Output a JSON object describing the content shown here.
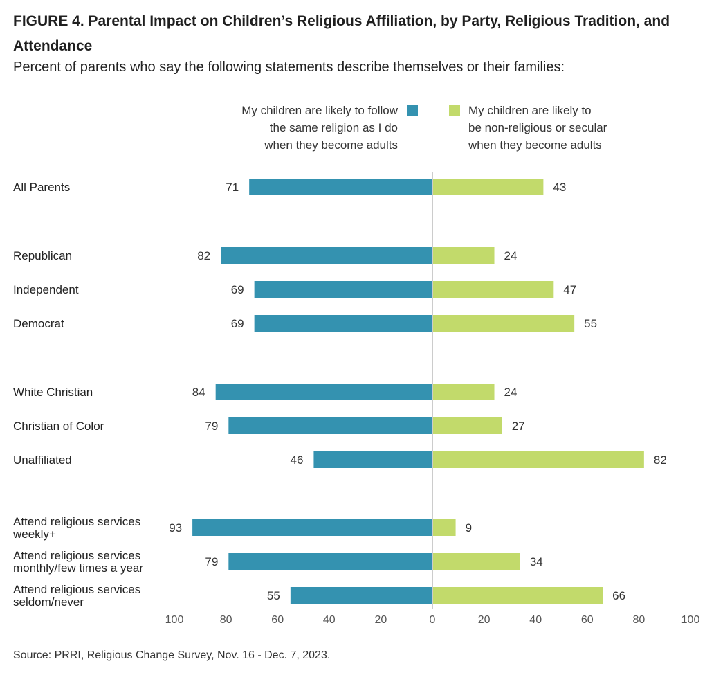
{
  "title": "FIGURE 4.  Parental Impact on Children’s Religious Affiliation, by Party, Religious Tradition, and Attendance",
  "subtitle": "Percent of parents who say the following statements describe themselves or their families:",
  "legend": {
    "left_lines": [
      "My children are likely to follow",
      "the same religion as I do",
      "when they become adults"
    ],
    "right_lines": [
      "My children are likely to",
      "be non-religious or secular",
      "when they become adults"
    ]
  },
  "source": "Source: PRRI, Religious Change Survey, Nov. 16 - Dec. 7, 2023.",
  "colors": {
    "follow": "#3492b0",
    "secular": "#c2da6b",
    "axis": "#cccccc"
  },
  "chart_data": {
    "type": "bar",
    "orientation": "diverging-horizontal",
    "categories": [
      [
        "All Parents"
      ],
      [
        "Republican"
      ],
      [
        "Independent"
      ],
      [
        "Democrat"
      ],
      [
        "White Christian"
      ],
      [
        "Christian of Color"
      ],
      [
        "Unaffiliated"
      ],
      [
        "Attend religious services",
        "weekly+"
      ],
      [
        "Attend religious services",
        "monthly/few times a year"
      ],
      [
        "Attend religious services",
        "seldom/never"
      ]
    ],
    "groups": [
      [
        0
      ],
      [
        1,
        2,
        3
      ],
      [
        4,
        5,
        6
      ],
      [
        7,
        8,
        9
      ]
    ],
    "series": [
      {
        "name": "My children are likely to follow the same religion as I do when they become adults",
        "side": "left",
        "values": [
          71,
          82,
          69,
          69,
          84,
          79,
          46,
          93,
          79,
          55
        ]
      },
      {
        "name": "My children are likely to be non-religious or secular when they become adults",
        "side": "right",
        "values": [
          43,
          24,
          47,
          55,
          24,
          27,
          82,
          9,
          34,
          66
        ]
      }
    ],
    "xlim": [
      -100,
      100
    ],
    "x_ticks": [
      "100",
      "80",
      "60",
      "40",
      "20",
      "0",
      "20",
      "40",
      "60",
      "80",
      "100"
    ],
    "grid": false,
    "legend_position": "top"
  }
}
